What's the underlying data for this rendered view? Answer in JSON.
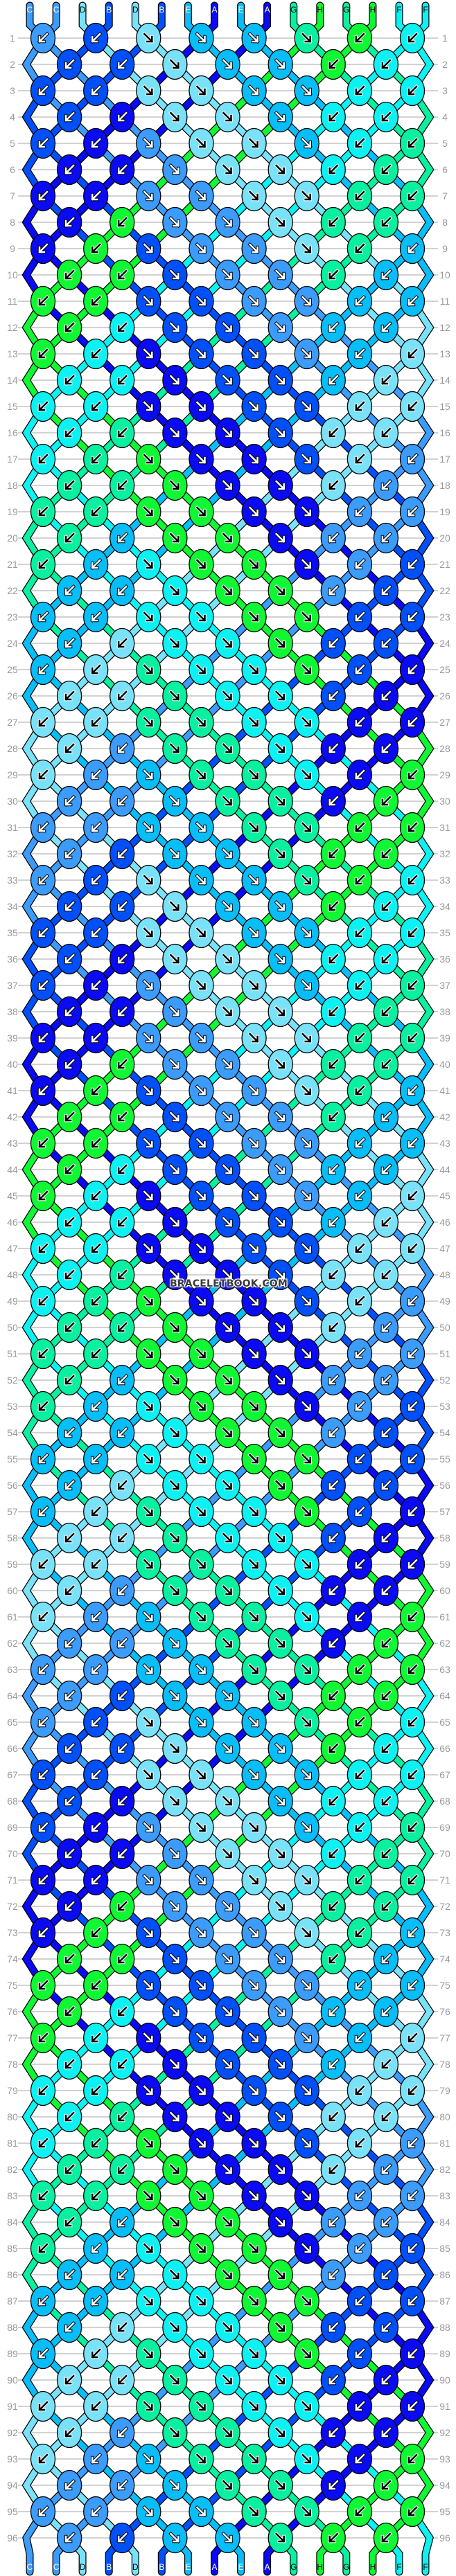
{
  "pattern": {
    "rows": 96,
    "strand_colors": {
      "A": "#0a0af5",
      "B": "#0050fa",
      "C": "#3c9cfc",
      "D": "#7ae2f8",
      "E": "#08bef8",
      "F": "#0cf2f2",
      "G": "#08f0a0",
      "H": "#10f834"
    },
    "light_colors": [
      "D",
      "F",
      "G",
      "H"
    ],
    "top_strands": [
      "C",
      "C",
      "D",
      "B",
      "D",
      "B",
      "E",
      "A",
      "E",
      "A",
      "G",
      "H",
      "G",
      "H",
      "F",
      "F"
    ],
    "bottom_strands": [
      "C",
      "C",
      "D",
      "B",
      "D",
      "B",
      "E",
      "A",
      "E",
      "A",
      "G",
      "H",
      "G",
      "H",
      "F",
      "F"
    ],
    "knot_legend": {
      "R": "forward-knot (↘)",
      "L": "backward-knot (↙)"
    },
    "knot_rows": [
      "LLRRRRLL",
      "LLRRRLL",
      "LLRRRRLL",
      "LLRRRLL",
      "LLRRRRLL",
      "LLRRRLL",
      "LLRRRRLL",
      "LLRRRLL",
      "LLRRRRLL",
      "LLRRRLL",
      "LLRRRRLL",
      "LLRRRLL",
      "LLRRRRLL",
      "LLRRRLL",
      "LLRRRRLL",
      "LLRRRLL",
      "LLRRRRLL",
      "LLRRRLL",
      "LLRRRRLL",
      "LLRRRLL",
      "LLRRRRLL",
      "LLRRRLL",
      "LLRRRRLL",
      "LLRRRLL",
      "LLRRRRLL",
      "LLRRRLL",
      "LLRRRRLL",
      "LLRRRLL",
      "LLRRRRLL",
      "LLRRRLL",
      "LLRRRRLL",
      "LLRRRLL",
      "LLRRRRLL",
      "LLRRRLL",
      "LLRRRRLL",
      "LLRRRLL",
      "LLRRRRLL",
      "LLRRRLL",
      "LLRRRRLL",
      "LLRRRLL",
      "LLRRRRLL",
      "LLRRRLL",
      "LLRRRRLL",
      "LLRRRLL",
      "LLRRRRLL",
      "LLRRRLL",
      "LLRRRRLL",
      "LLRRRLL",
      "LLRRRRLL",
      "LLRRRLL",
      "LLRRRRLL",
      "LLRRRLL",
      "LLRRRRLL",
      "LLRRRLL",
      "LLRRRRLL",
      "LLRRRLL",
      "LLRRRRLL",
      "LLRRRLL",
      "LLRRRRLL",
      "LLRRRLL",
      "LLRRRRLL",
      "LLRRRLL",
      "LLRRRRLL",
      "LLRRRLL",
      "LLRRRRLL",
      "LLRRRLL",
      "LLRRRRLL",
      "LLRRRLL",
      "LLRRRRLL",
      "LLRRRLL",
      "LLRRRRLL",
      "LLRRRLL",
      "LLRRRRLL",
      "LLRRRLL",
      "LLRRRRLL",
      "LLRRRLL",
      "LLRRRRLL",
      "LLRRRLL",
      "LLRRRRLL",
      "LLRRRLL",
      "LLRRRRLL",
      "LLRRRLL",
      "LLRRRRLL",
      "LLRRRLL",
      "LLRRRRLL",
      "LLRRRLL",
      "LLRRRRLL",
      "LLRRRLL",
      "LLRRRRLL",
      "LLRRRLL",
      "LLRRRRLL",
      "LLRRRLL",
      "LLRRRRLL",
      "LLRRRLL",
      "LLRRRRLL",
      "LLRRRLL"
    ]
  },
  "watermark": "BRACELETBOOK.COM"
}
